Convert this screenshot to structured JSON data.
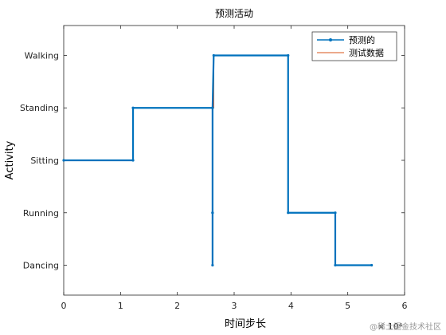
{
  "chart_data": {
    "type": "line",
    "title": "预测活动",
    "xlabel": "时间步长",
    "ylabel": "Activity",
    "x_exponent_label": "× 10⁴",
    "xlim": [
      0,
      6
    ],
    "x_ticks": [
      0,
      1,
      2,
      3,
      4,
      5,
      6
    ],
    "y_categories": [
      "Dancing",
      "Running",
      "Sitting",
      "Standing",
      "Walking"
    ],
    "grid": false,
    "legend_position": "top-right",
    "series": [
      {
        "name": "预测的",
        "color": "#0072BD",
        "style": "line-with-dots",
        "x": [
          0,
          1.22,
          1.22,
          2.62,
          2.62,
          2.62,
          2.62,
          2.62,
          2.64,
          3.95,
          3.95,
          4.78,
          4.78,
          5.42
        ],
        "y": [
          "Sitting",
          "Sitting",
          "Standing",
          "Standing",
          "Running",
          "Dancing",
          "Running",
          "Standing",
          "Walking",
          "Walking",
          "Running",
          "Running",
          "Dancing",
          "Dancing"
        ]
      },
      {
        "name": "测试数据",
        "color": "#D95319",
        "style": "line",
        "x": [
          0,
          1.22,
          1.22,
          2.64,
          2.64,
          3.95,
          3.95,
          4.78,
          4.78,
          5.42
        ],
        "y": [
          "Sitting",
          "Sitting",
          "Standing",
          "Standing",
          "Walking",
          "Walking",
          "Running",
          "Running",
          "Dancing",
          "Dancing"
        ]
      }
    ]
  },
  "watermark": "@稀土掘金技术社区"
}
